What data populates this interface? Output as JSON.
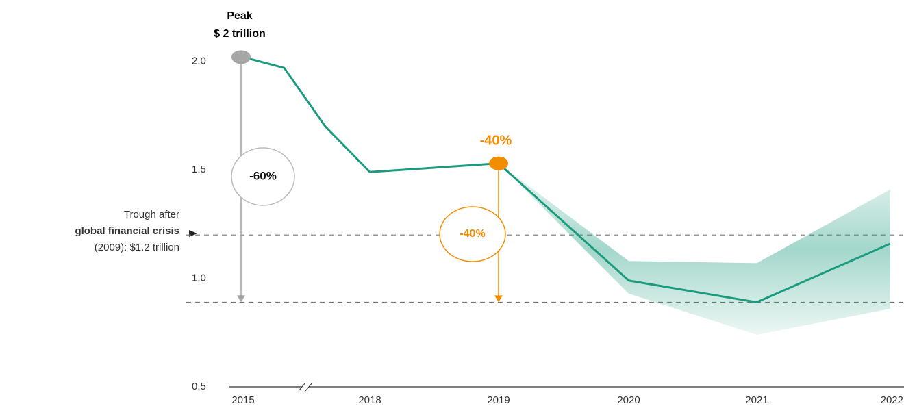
{
  "chart_data": {
    "type": "line",
    "categories": [
      "2015",
      null,
      null,
      "2018",
      "2019",
      "2020",
      "2021",
      "2022"
    ],
    "series": [
      {
        "color": "#1b9b7e",
        "values": [
          2.02,
          1.97,
          1.7,
          1.49,
          1.53,
          0.99,
          0.89,
          1.16
        ]
      }
    ],
    "band_lower": [
      null,
      null,
      null,
      null,
      1.53,
      0.93,
      0.74,
      0.86
    ],
    "band_upper": [
      null,
      null,
      null,
      null,
      1.53,
      1.08,
      1.07,
      1.41
    ],
    "band_color": "#1b9b7e",
    "ylim": [
      0.5,
      2.1
    ],
    "yticks": [
      0.5,
      {
        "value": 1,
        "label": "1.0"
      },
      1.5,
      {
        "value": 2,
        "label": "2.0"
      }
    ],
    "reference_lines": [
      1.2,
      0.89
    ],
    "annotations": {
      "peak_title": "Peak",
      "peak_value": "$ 2 trillion",
      "drop_total": "-60%",
      "drop_2019": "-40%",
      "drop_2019_circle": "-40%",
      "trough_1": "Trough after",
      "trough_2": "global financial crisis",
      "trough_3": "(2009): $1.2 trillion"
    },
    "peak_color": "#a6a6a6",
    "highlight_color": "#f28c00"
  }
}
